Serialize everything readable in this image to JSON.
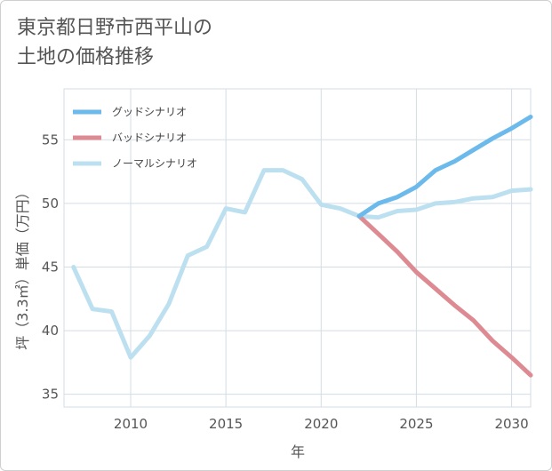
{
  "title": "東京都日野市西平山の\n土地の価格推移",
  "chart_data": {
    "type": "line",
    "xlabel": "年",
    "ylabel": "坪（3.3㎡）単価（万円）",
    "xlim": [
      2006.5,
      2031
    ],
    "ylim": [
      34,
      59
    ],
    "x_ticks": [
      2010,
      2015,
      2020,
      2025,
      2030
    ],
    "y_ticks": [
      35,
      40,
      45,
      50,
      55
    ],
    "grid": true,
    "legend_position": "top-left",
    "series": [
      {
        "name": "グッドシナリオ",
        "color": "#6cbaeb",
        "x": [
          2022,
          2023,
          2024,
          2025,
          2026,
          2027,
          2028,
          2029,
          2030,
          2031
        ],
        "values": [
          49.0,
          50.0,
          50.5,
          51.3,
          52.6,
          53.3,
          54.2,
          55.1,
          55.9,
          56.8
        ]
      },
      {
        "name": "バッドシナリオ",
        "color": "#de8a92",
        "x": [
          2022,
          2023,
          2024,
          2025,
          2026,
          2027,
          2028,
          2029,
          2030,
          2031
        ],
        "values": [
          49.0,
          47.6,
          46.2,
          44.6,
          43.3,
          42.0,
          40.8,
          39.2,
          37.9,
          36.5
        ]
      },
      {
        "name": "ノーマルシナリオ",
        "color": "#bde0f0",
        "x": [
          2007,
          2008,
          2009,
          2010,
          2011,
          2012,
          2013,
          2014,
          2015,
          2016,
          2017,
          2018,
          2019,
          2020,
          2021,
          2022,
          2023,
          2024,
          2025,
          2026,
          2027,
          2028,
          2029,
          2030,
          2031
        ],
        "values": [
          45.0,
          41.7,
          41.5,
          37.9,
          39.6,
          42.1,
          45.9,
          46.6,
          49.6,
          49.3,
          52.6,
          52.6,
          51.9,
          49.9,
          49.6,
          49.0,
          48.9,
          49.4,
          49.5,
          50.0,
          50.1,
          50.4,
          50.5,
          51.0,
          51.1
        ]
      }
    ]
  }
}
